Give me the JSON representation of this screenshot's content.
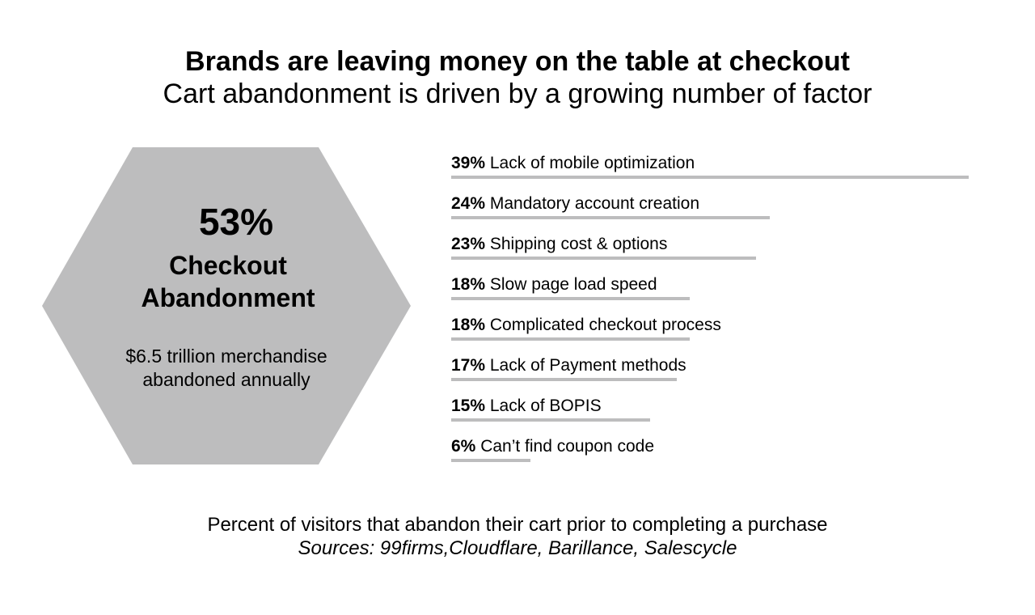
{
  "title": "Brands are leaving money on the table at checkout",
  "subtitle": "Cart abandonment is driven by a growing number of factor",
  "hexagon": {
    "value": "53%",
    "label_line1": "Checkout",
    "label_line2": "Abandonment",
    "note_line1": "$6.5 trillion merchandise",
    "note_line2": "abandoned annually",
    "color": "#bdbdbe"
  },
  "chart_data": {
    "type": "bar",
    "orientation": "horizontal",
    "bar_color": "#bdbdbe",
    "max_value": 39,
    "categories": [
      "Lack of mobile optimization",
      "Mandatory account creation",
      "Shipping cost & options",
      "Slow page load speed",
      "Complicated checkout process",
      "Lack of Payment methods",
      "Lack of BOPIS",
      "Can’t find coupon code"
    ],
    "value_labels": [
      "39%",
      "24%",
      "23%",
      "18%",
      "18%",
      "17%",
      "15%",
      "6%"
    ],
    "values": [
      39,
      24,
      23,
      18,
      18,
      17,
      15,
      6
    ]
  },
  "footer": {
    "caption": "Percent of visitors that abandon their cart prior to completing a purchase",
    "sources": "Sources: 99firms,Cloudflare, Barillance, Salescycle"
  }
}
